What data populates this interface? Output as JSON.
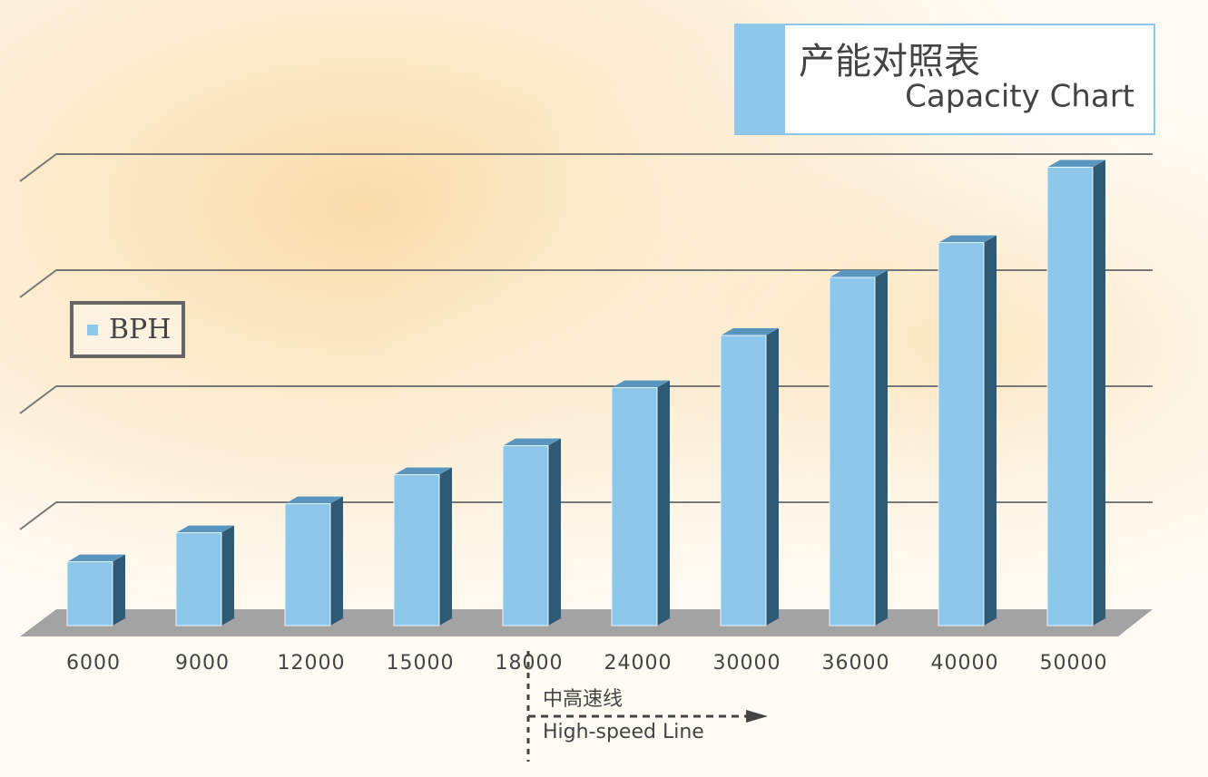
{
  "chart_data": {
    "type": "bar",
    "title": "产能对照表",
    "subtitle": "Capacity Chart",
    "categories": [
      "6000",
      "9000",
      "12000",
      "15000",
      "18000",
      "24000",
      "30000",
      "36000",
      "40000",
      "50000"
    ],
    "series": [
      {
        "name": "BPH",
        "color": "#8dc8eb",
        "values": [
          0.55,
          0.8,
          1.05,
          1.3,
          1.55,
          2.05,
          2.5,
          3.0,
          3.3,
          3.95
        ]
      }
    ],
    "ylim": [
      0,
      4
    ],
    "yticks": [
      1,
      2,
      3,
      4
    ],
    "grid": true,
    "annotations": [
      "中高速线",
      "High-speed Line"
    ]
  }
}
